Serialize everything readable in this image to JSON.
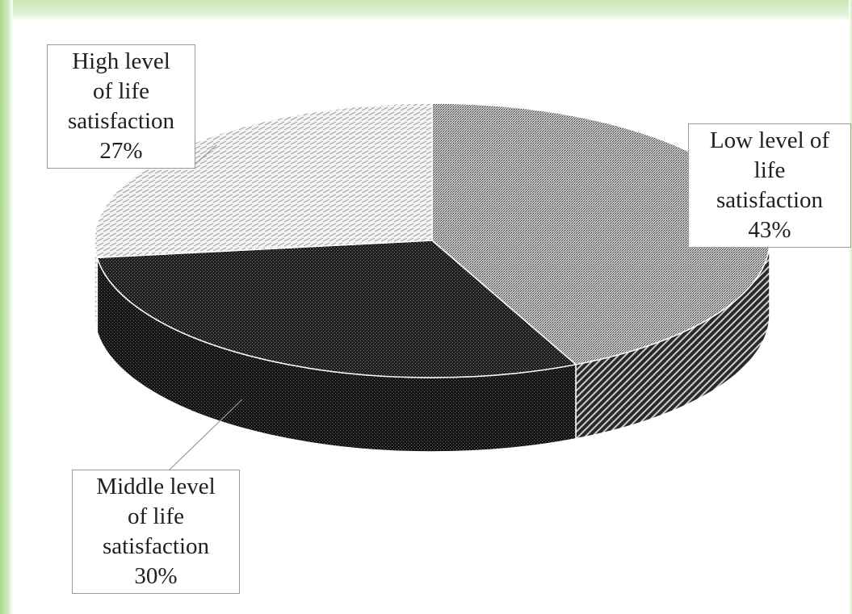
{
  "chart_data": {
    "type": "pie",
    "title": "",
    "three_d": true,
    "slices": [
      {
        "name": "Low level of life satisfaction",
        "value": 43,
        "label_lines": [
          "Low level of",
          "life",
          "satisfaction",
          "43%"
        ],
        "pattern": "fine-gray-dots"
      },
      {
        "name": "Middle level of life satisfaction",
        "value": 30,
        "label_lines": [
          "Middle level",
          "of life",
          "satisfaction",
          "30%"
        ],
        "pattern": "dark-dotted"
      },
      {
        "name": "High level of life satisfaction",
        "value": 27,
        "label_lines": [
          "High level",
          "of life",
          "satisfaction",
          "27%"
        ],
        "pattern": "light-dashed"
      }
    ],
    "legend": "none",
    "data_labels": "outside-callout"
  },
  "colors": {
    "border_green": "#a9d68e",
    "label_border": "#9a9a9a",
    "text": "#202020"
  }
}
